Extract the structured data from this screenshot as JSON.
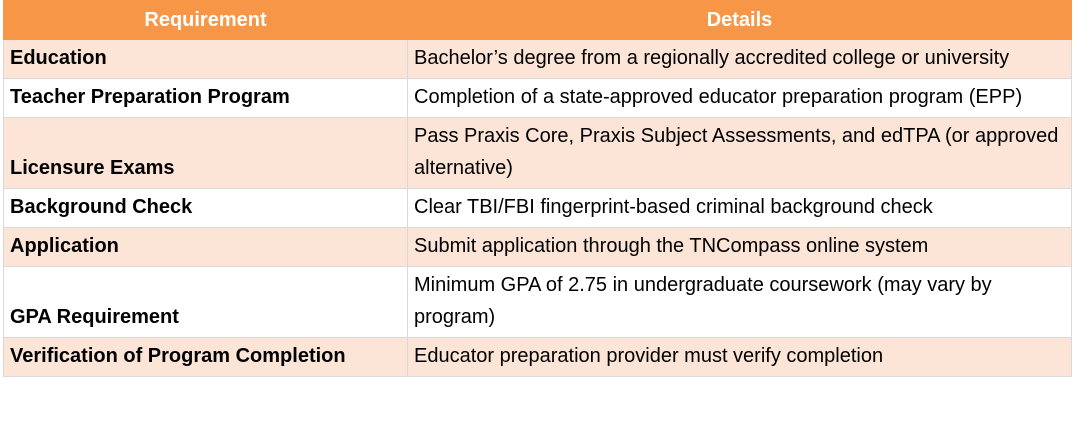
{
  "table": {
    "header": [
      "Requirement",
      "Details"
    ],
    "rows": [
      [
        "Education",
        "Bachelor’s degree from a regionally accredited college or university"
      ],
      [
        "Teacher Preparation Program",
        "Completion of a state-approved educator preparation program (EPP)"
      ],
      [
        "Licensure Exams",
        "Pass Praxis Core, Praxis Subject Assessments, and edTPA (or approved alternative)"
      ],
      [
        "Background Check",
        "Clear TBI/FBI fingerprint-based criminal background check"
      ],
      [
        "Application",
        "Submit application through the TNCompass online system"
      ],
      [
        "GPA Requirement",
        "Minimum GPA of 2.75 in undergraduate coursework (may vary by program)"
      ],
      [
        "Verification of Program Completion",
        "Educator preparation provider must verify completion"
      ]
    ]
  }
}
